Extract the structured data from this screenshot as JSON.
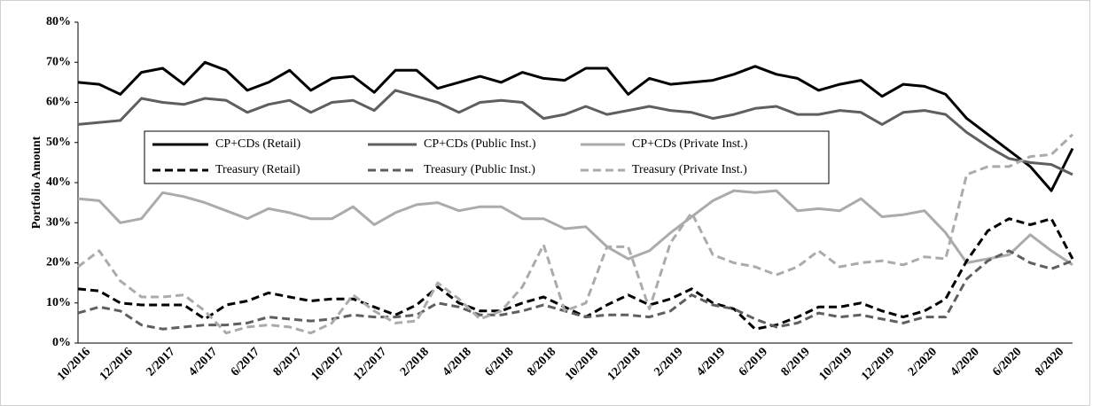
{
  "chart_data": {
    "type": "line",
    "y_label": "Portfolio Amount",
    "categories": [
      "10/2016",
      null,
      "12/2016",
      null,
      "2/2017",
      null,
      "4/2017",
      null,
      "6/2017",
      null,
      "8/2017",
      null,
      "10/2017",
      null,
      "12/2017",
      null,
      "2/2018",
      null,
      "4/2018",
      null,
      "6/2018",
      null,
      "8/2018",
      null,
      "10/2018",
      null,
      "12/2018",
      null,
      "2/2019",
      null,
      "4/2019",
      null,
      "6/2019",
      null,
      "8/2019",
      null,
      "10/2019",
      null,
      "12/2019",
      null,
      "2/2020",
      null,
      "4/2020",
      null,
      "6/2020",
      null,
      "8/2020",
      null
    ],
    "ylim": [
      0,
      80
    ],
    "yticks": [
      {
        "value": 0,
        "label": "0%"
      },
      {
        "value": 10,
        "label": "10%"
      },
      {
        "value": 20,
        "label": "20%"
      },
      {
        "value": 30,
        "label": "30%"
      },
      {
        "value": 40,
        "label": "40%"
      },
      {
        "value": 50,
        "label": "50%"
      },
      {
        "value": 60,
        "label": "60%"
      },
      {
        "value": 70,
        "label": "70%"
      },
      {
        "value": 80,
        "label": "80%"
      }
    ],
    "grid": false,
    "series": [
      {
        "name": "CP+CDs (Retail)",
        "color": "#000000",
        "line_style": "solid",
        "values": [
          65,
          64.5,
          62,
          67.5,
          68.5,
          64.5,
          70,
          68,
          63,
          65,
          68,
          63,
          66,
          66.5,
          62.5,
          68,
          68,
          63.5,
          65,
          66.5,
          65,
          67.5,
          66,
          65.5,
          68.5,
          68.5,
          62,
          66,
          64.5,
          65,
          65.5,
          67,
          69,
          67,
          66,
          63,
          64.5,
          65.5,
          61.5,
          64.5,
          64,
          62,
          56,
          52,
          48,
          44,
          38,
          48.5
        ]
      },
      {
        "name": "CP+CDs (Public Inst.)",
        "color": "#5f5f5f",
        "line_style": "solid",
        "values": [
          54.5,
          55,
          55.5,
          61,
          60,
          59.5,
          61,
          60.5,
          57.5,
          59.5,
          60.5,
          57.5,
          60,
          60.5,
          58,
          63,
          61.5,
          60,
          57.5,
          60,
          60.5,
          60,
          56,
          57,
          59,
          57,
          58,
          59,
          58,
          57.5,
          56,
          57,
          58.5,
          59,
          57,
          57,
          58,
          57.5,
          54.5,
          57.5,
          58,
          57,
          52.5,
          49,
          46,
          45,
          44.5,
          42
        ]
      },
      {
        "name": "CP+CDs (Private Inst.)",
        "color": "#ababab",
        "line_style": "solid",
        "values": [
          36,
          35.5,
          30,
          31,
          37.5,
          36.5,
          35,
          33,
          31,
          33.5,
          32.5,
          31,
          31,
          34,
          29.5,
          32.5,
          34.5,
          35,
          33,
          34,
          34,
          31,
          31,
          28.5,
          29,
          24,
          21,
          23,
          27.5,
          31.5,
          35.5,
          38,
          37.5,
          38,
          33,
          33.5,
          33,
          36,
          31.5,
          32,
          33,
          27.5,
          20,
          21,
          22,
          27,
          23,
          19.5
        ]
      },
      {
        "name": "Treasury (Retail)",
        "color": "#000000",
        "line_style": "dashed",
        "values": [
          13.5,
          13,
          10,
          9.5,
          9.5,
          9.5,
          6,
          9.5,
          10.5,
          12.5,
          11.5,
          10.5,
          11,
          11,
          9,
          7,
          9.5,
          14,
          10,
          8,
          8,
          10,
          11.5,
          9,
          6.5,
          9.5,
          12,
          9.5,
          11,
          13.5,
          10,
          8.5,
          3.5,
          4.5,
          6.5,
          9,
          9,
          10,
          8,
          6.5,
          8,
          11,
          20.5,
          28,
          31,
          29.5,
          31,
          21
        ]
      },
      {
        "name": "Treasury (Public Inst.)",
        "color": "#5f5f5f",
        "line_style": "dashed",
        "values": [
          7.5,
          9,
          8,
          4.5,
          3.5,
          4,
          4.5,
          4.5,
          5,
          6.5,
          6,
          5.5,
          6,
          7,
          6.5,
          6.5,
          7,
          10,
          9,
          7,
          7,
          8,
          9.5,
          8,
          6.5,
          7,
          7,
          6.5,
          8,
          12,
          9.5,
          8.5,
          6,
          4,
          5,
          7.5,
          6.5,
          7,
          6,
          5,
          6.5,
          6.5,
          16,
          20.5,
          23,
          20,
          18.5,
          20.5
        ]
      },
      {
        "name": "Treasury (Private Inst.)",
        "color": "#ababab",
        "line_style": "dashed",
        "values": [
          19,
          23,
          15.5,
          11.5,
          11.5,
          12,
          8,
          2.5,
          4,
          4.5,
          4,
          2.5,
          5,
          12,
          8,
          5,
          5.5,
          15,
          11,
          6,
          8,
          14,
          24.5,
          8,
          10,
          24,
          24,
          8.5,
          25,
          32.5,
          22,
          20,
          19,
          17,
          19,
          23,
          19,
          20,
          20.5,
          19.5,
          21.5,
          21,
          42,
          44,
          44,
          46.5,
          47,
          52
        ]
      }
    ]
  }
}
